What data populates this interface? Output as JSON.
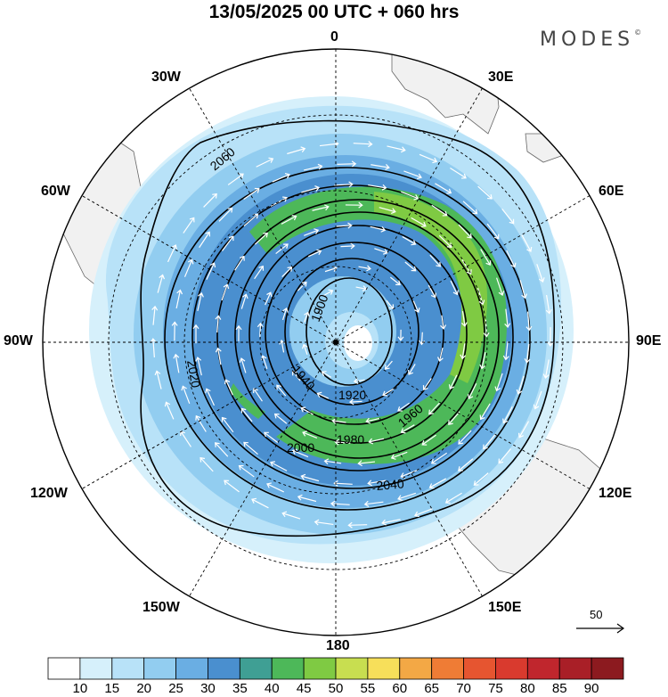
{
  "title": "13/05/2025  00 UTC  + 060 hrs",
  "logo": "MODES",
  "logo_mark": "©",
  "longitude_labels": {
    "lon_0": "0",
    "lon_30e": "30E",
    "lon_60e": "60E",
    "lon_90e": "90E",
    "lon_120e": "120E",
    "lon_150e": "150E",
    "lon_180": "180",
    "lon_150w": "150W",
    "lon_120w": "120W",
    "lon_90w": "90W",
    "lon_60w": "60W",
    "lon_30w": "30W"
  },
  "contours": [
    "1900",
    "1920",
    "1940",
    "1960",
    "1980",
    "2000",
    "2020",
    "2040",
    "2060"
  ],
  "colorbar": {
    "labels": [
      "10",
      "15",
      "20",
      "25",
      "30",
      "35",
      "40",
      "45",
      "50",
      "55",
      "60",
      "65",
      "70",
      "75",
      "80",
      "85",
      "90"
    ],
    "colors": [
      "#ffffff",
      "#d6f0fb",
      "#b8e2f8",
      "#92cdf0",
      "#6aaee3",
      "#4a8fcf",
      "#3f9f94",
      "#4db859",
      "#7fca43",
      "#c8de50",
      "#f7df5a",
      "#f3a845",
      "#ef7c35",
      "#e65530",
      "#d93a2e",
      "#c0262d",
      "#a91f27",
      "#8c1a1f"
    ]
  },
  "wind_reference": {
    "label": "50"
  },
  "colors": {
    "land": "#f1f1f1",
    "grid": "#000000",
    "contour": "#000000"
  }
}
